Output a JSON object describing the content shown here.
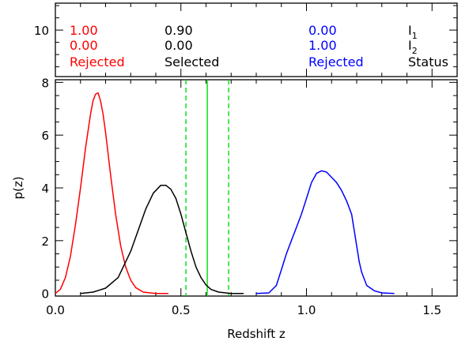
{
  "chart_data": {
    "type": "line",
    "xlabel": "Redshift z",
    "ylabel": "p(z)",
    "xlim": [
      0,
      1.6
    ],
    "ylim": [
      -0.1,
      8.1
    ],
    "upper_ylim": [
      8.1,
      11.1
    ],
    "x_ticks": [
      0.0,
      0.5,
      1.0,
      1.5
    ],
    "x_tick_labels": [
      "0.0",
      "0.5",
      "1.0",
      "1.5"
    ],
    "y_ticks": [
      0,
      2,
      4,
      6,
      8
    ],
    "y_tick_labels": [
      "0",
      "2",
      "4",
      "6",
      "8"
    ],
    "upper_y_ticks": [
      10
    ],
    "upper_y_tick_labels": [
      "10"
    ],
    "grid": false,
    "legend": "none",
    "series": [
      {
        "color": "#ff0000",
        "x": [
          0.0,
          0.02,
          0.04,
          0.06,
          0.08,
          0.1,
          0.12,
          0.14,
          0.15,
          0.16,
          0.17,
          0.18,
          0.19,
          0.2,
          0.22,
          0.24,
          0.26,
          0.28,
          0.3,
          0.32,
          0.35,
          0.4,
          0.45
        ],
        "y": [
          0.0,
          0.15,
          0.6,
          1.4,
          2.6,
          4.0,
          5.5,
          6.8,
          7.3,
          7.55,
          7.6,
          7.3,
          6.8,
          6.1,
          4.5,
          3.0,
          1.8,
          1.0,
          0.5,
          0.22,
          0.05,
          0.0,
          0.0
        ]
      },
      {
        "color": "#000000",
        "x": [
          0.1,
          0.15,
          0.2,
          0.25,
          0.3,
          0.33,
          0.36,
          0.39,
          0.42,
          0.44,
          0.46,
          0.48,
          0.5,
          0.52,
          0.54,
          0.56,
          0.58,
          0.6,
          0.62,
          0.65,
          0.7,
          0.75
        ],
        "y": [
          0.0,
          0.05,
          0.2,
          0.6,
          1.6,
          2.4,
          3.2,
          3.8,
          4.1,
          4.1,
          3.95,
          3.6,
          3.0,
          2.3,
          1.6,
          1.0,
          0.6,
          0.32,
          0.15,
          0.05,
          0.0,
          0.0
        ]
      },
      {
        "color": "#0000ff",
        "x": [
          0.8,
          0.85,
          0.88,
          0.9,
          0.92,
          0.94,
          0.96,
          0.98,
          1.0,
          1.02,
          1.04,
          1.06,
          1.08,
          1.1,
          1.12,
          1.14,
          1.16,
          1.18,
          1.19,
          1.2,
          1.21,
          1.22,
          1.24,
          1.27,
          1.3,
          1.35
        ],
        "y": [
          0.0,
          0.02,
          0.3,
          0.9,
          1.5,
          2.0,
          2.5,
          3.0,
          3.6,
          4.2,
          4.55,
          4.65,
          4.6,
          4.4,
          4.2,
          3.9,
          3.5,
          3.0,
          2.4,
          1.8,
          1.2,
          0.8,
          0.3,
          0.1,
          0.02,
          0.0
        ]
      }
    ],
    "vertical_lines": [
      {
        "x": 0.52,
        "color": "#00dd00",
        "style": "dashed"
      },
      {
        "x": 0.605,
        "color": "#00dd00",
        "style": "solid"
      },
      {
        "x": 0.69,
        "color": "#00dd00",
        "style": "dashed"
      }
    ],
    "annotation_table": {
      "columns": [
        {
          "color": "#ff0000",
          "rows": [
            "1.00",
            "0.00",
            "Rejected"
          ]
        },
        {
          "color": "#000000",
          "rows": [
            "0.90",
            "0.00",
            "Selected"
          ]
        },
        {
          "color": "#0000ff",
          "rows": [
            "0.00",
            "1.00",
            "Rejected"
          ]
        }
      ],
      "row_labels": [
        {
          "base": "I",
          "sub": "1"
        },
        {
          "base": "I",
          "sub": "2"
        },
        {
          "base": "Status",
          "sub": ""
        }
      ]
    }
  }
}
